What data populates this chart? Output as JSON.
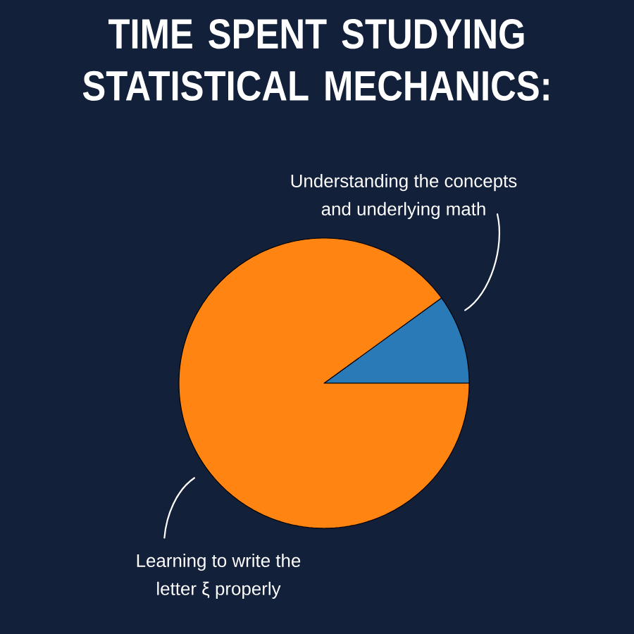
{
  "chart_data": {
    "type": "pie",
    "title": "TIME SPENT STUDYING STATISTICAL MECHANICS:",
    "categories": [
      "Understanding the concepts and underlying math",
      "Learning to write the letter ξ properly"
    ],
    "values": [
      10,
      90
    ],
    "colors": [
      "#2a7ab8",
      "#ff8412"
    ]
  }
}
